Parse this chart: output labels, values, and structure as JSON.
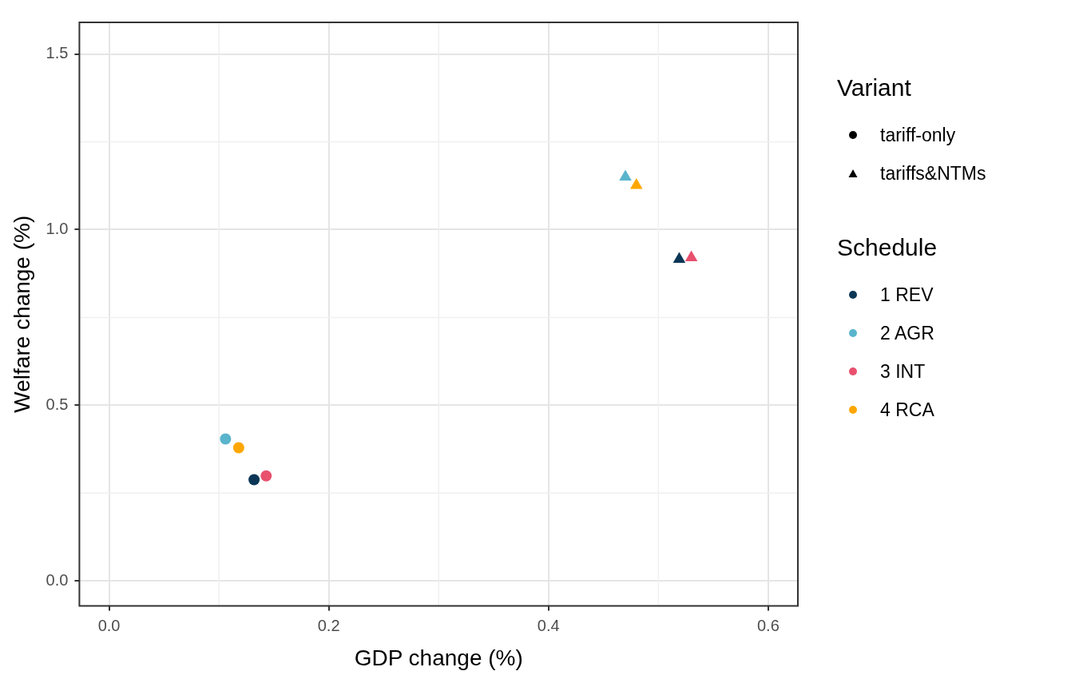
{
  "chart_data": {
    "type": "scatter",
    "xlabel": "GDP change (%)",
    "ylabel": "Welfare change (%)",
    "legend_title": [
      "Variant",
      "Schedule"
    ],
    "legend": "right",
    "grid": true,
    "xlim": [
      -0.027,
      0.627
    ],
    "xticks": [
      {
        "value": 0,
        "label": "0.0"
      },
      {
        "value": 0.2,
        "label": "0.2"
      },
      {
        "value": 0.4,
        "label": "0.4"
      },
      {
        "value": 0.6,
        "label": "0.6"
      }
    ],
    "ylim": [
      -0.071,
      1.59
    ],
    "yticks": [
      {
        "value": 0,
        "label": "0.0"
      },
      {
        "value": 0.5,
        "label": "0.5"
      },
      {
        "value": 1,
        "label": "1.0"
      },
      {
        "value": 1.5,
        "label": "1.5"
      }
    ],
    "series": [
      {
        "name": "tariff-only",
        "color": "#000000",
        "marker": "circle"
      },
      {
        "name": "tariffs&NTMs",
        "color": "#000000",
        "marker": "triangle"
      },
      {
        "name": "1 REV",
        "color": "#0b3656",
        "marker": [
          "circle",
          "triangle"
        ],
        "x": [
          0.132,
          0.519
        ],
        "values": [
          0.288,
          0.916
        ]
      },
      {
        "name": "2 AGR",
        "color": "#5ab4cc",
        "marker": [
          "circle",
          "triangle"
        ],
        "x": [
          0.106,
          0.47
        ],
        "values": [
          0.404,
          1.15
        ]
      },
      {
        "name": "3 INT",
        "color": "#e8506e",
        "marker": [
          "circle",
          "triangle"
        ],
        "x": [
          0.143,
          0.53
        ],
        "values": [
          0.299,
          0.92
        ]
      },
      {
        "name": "4 RCA",
        "color": "#ffa600",
        "marker": [
          "circle",
          "triangle"
        ],
        "x": [
          0.118,
          0.48
        ],
        "values": [
          0.379,
          1.126
        ]
      }
    ]
  }
}
